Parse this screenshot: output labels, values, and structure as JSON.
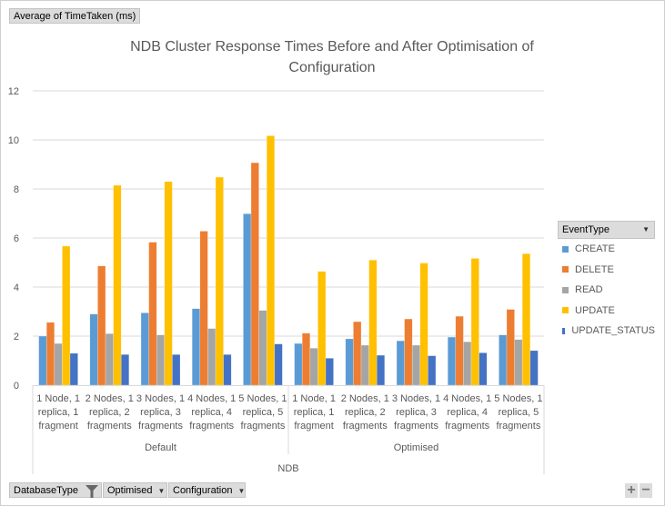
{
  "value_field_button": "Average of TimeTaken (ms)",
  "filter_buttons": [
    {
      "label": "DatabaseType",
      "icon": "filter-icon"
    },
    {
      "label": "Optimised",
      "icon": "dropdown-icon"
    },
    {
      "label": "Configuration",
      "icon": "dropdown-icon"
    }
  ],
  "legend_field_button": "EventType",
  "zoom_controls": {
    "plus": "+",
    "minus": "−"
  },
  "chart_data": {
    "type": "bar",
    "title": "NDB Cluster Response Times Before and After Optimisation of Configuration",
    "title_lines": [
      "NDB Cluster Response Times Before and After Optimisation of",
      "Configuration"
    ],
    "ylim": [
      0,
      12
    ],
    "yticks": [
      "0",
      "2",
      "4",
      "6",
      "8",
      "10",
      "12"
    ],
    "grid": true,
    "legend_position": "right",
    "categories": [
      "1 Node, 1 replica, 1 fragment",
      "2 Nodes, 1 replica, 2 fragments",
      "3 Nodes, 1 replica, 3 fragments",
      "4 Nodes, 1 replica, 4 fragments",
      "5 Nodes, 1 replica, 5 fragments",
      "1 Node, 1 replica, 1 fragment",
      "2 Nodes, 1 replica, 2 fragments",
      "3 Nodes, 1 replica, 3 fragments",
      "4 Nodes, 1 replica, 4 fragments",
      "5 Nodes, 1 replica, 5 fragments"
    ],
    "category_lines": [
      [
        "1 Node, 1",
        "replica, 1",
        "fragment"
      ],
      [
        "2 Nodes, 1",
        "replica, 2",
        "fragments"
      ],
      [
        "3 Nodes, 1",
        "replica, 3",
        "fragments"
      ],
      [
        "4 Nodes, 1",
        "replica, 4",
        "fragments"
      ],
      [
        "5 Nodes, 1",
        "replica, 5",
        "fragments"
      ],
      [
        "1 Node, 1",
        "replica, 1",
        "fragment"
      ],
      [
        "2 Nodes, 1",
        "replica, 2",
        "fragments"
      ],
      [
        "3 Nodes, 1",
        "replica, 3",
        "fragments"
      ],
      [
        "4 Nodes, 1",
        "replica, 4",
        "fragments"
      ],
      [
        "5 Nodes, 1",
        "replica, 5",
        "fragments"
      ]
    ],
    "groups": [
      {
        "label": "Default",
        "count": 5
      },
      {
        "label": "Optimised",
        "count": 5
      }
    ],
    "outer_group": "NDB",
    "series": [
      {
        "name": "CREATE",
        "color": "#5B9BD5",
        "values": [
          2.0,
          2.9,
          2.95,
          3.12,
          6.99,
          1.7,
          1.89,
          1.81,
          1.96,
          2.05
        ]
      },
      {
        "name": "DELETE",
        "color": "#ED7D31",
        "values": [
          2.56,
          4.86,
          5.83,
          6.28,
          9.07,
          2.12,
          2.59,
          2.7,
          2.81,
          3.09
        ]
      },
      {
        "name": "READ",
        "color": "#A5A5A5",
        "values": [
          1.7,
          2.1,
          2.05,
          2.31,
          3.05,
          1.51,
          1.63,
          1.63,
          1.77,
          1.86
        ]
      },
      {
        "name": "UPDATE",
        "color": "#FFC000",
        "values": [
          5.67,
          8.15,
          8.3,
          8.48,
          10.17,
          4.64,
          5.1,
          4.98,
          5.17,
          5.36
        ]
      },
      {
        "name": "UPDATE_STATUS",
        "color": "#4472C4",
        "values": [
          1.3,
          1.25,
          1.25,
          1.25,
          1.68,
          1.1,
          1.22,
          1.2,
          1.32,
          1.41
        ]
      }
    ]
  }
}
